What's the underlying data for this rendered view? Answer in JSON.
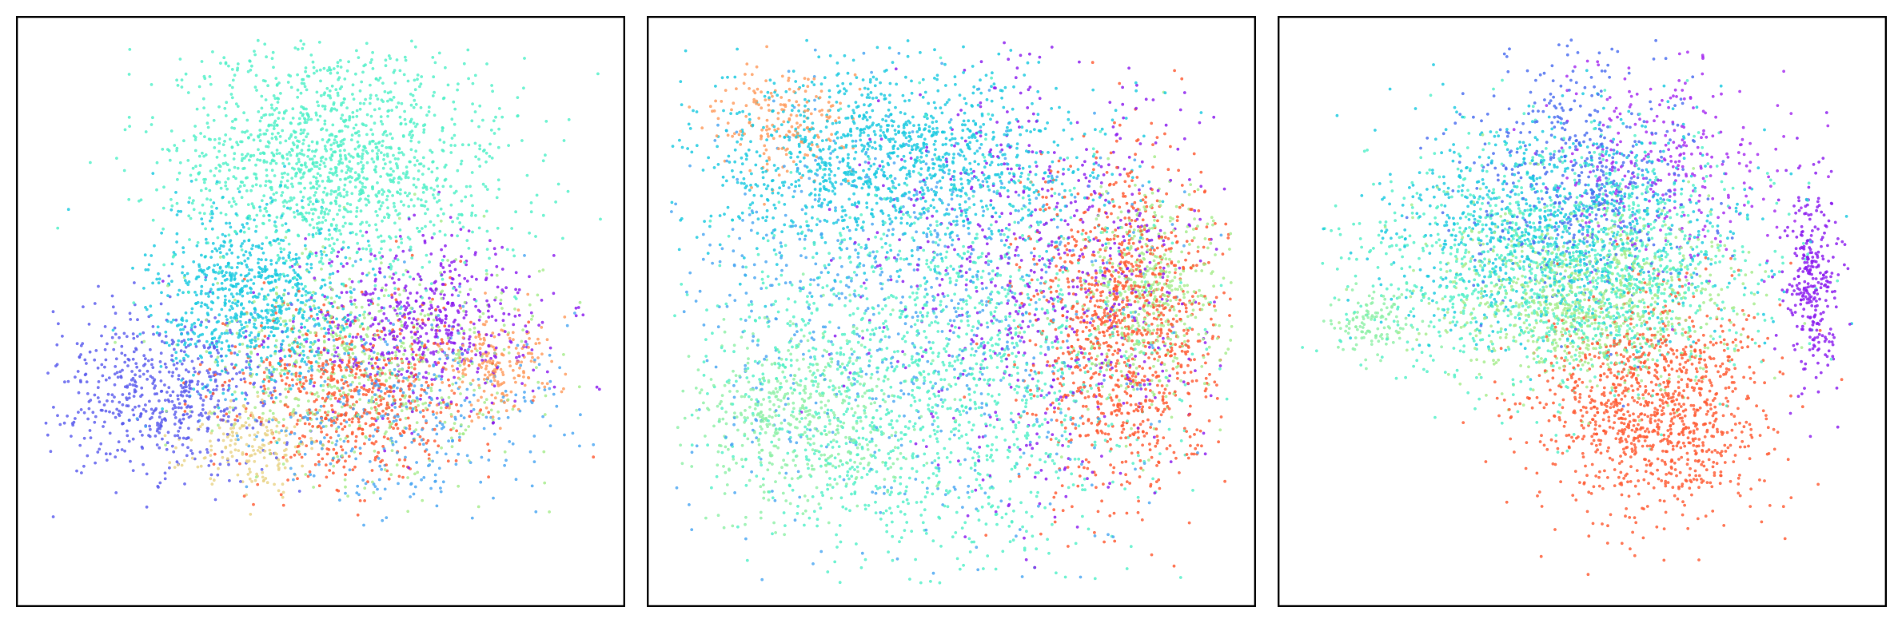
{
  "chart_data": [
    {
      "type": "scatter",
      "title": "",
      "xlabel": "",
      "ylabel": "",
      "xlim": [
        -1,
        1
      ],
      "ylim": [
        -1,
        1
      ],
      "axis_ticks": "none",
      "grid": false,
      "legend": "none",
      "colormap": "rainbow",
      "series": [
        {
          "color": "#51f0c8",
          "cx": 0.05,
          "cy": 0.55,
          "sx": 0.3,
          "sy": 0.22,
          "n": 1500
        },
        {
          "color": "#19c9e0",
          "cx": -0.25,
          "cy": 0.05,
          "sx": 0.18,
          "sy": 0.16,
          "n": 800
        },
        {
          "color": "#5b5ced",
          "cx": -0.55,
          "cy": -0.3,
          "sx": 0.2,
          "sy": 0.15,
          "n": 600
        },
        {
          "color": "#8b1cef",
          "cx": 0.35,
          "cy": -0.05,
          "sx": 0.22,
          "sy": 0.15,
          "n": 550
        },
        {
          "color": "#ff5a32",
          "cx": 0.1,
          "cy": -0.3,
          "sx": 0.2,
          "sy": 0.17,
          "n": 650
        },
        {
          "color": "#a6ec8c",
          "cx": 0.15,
          "cy": -0.2,
          "sx": 0.28,
          "sy": 0.2,
          "n": 600
        },
        {
          "color": "#e9d387",
          "cx": -0.25,
          "cy": -0.5,
          "sx": 0.12,
          "sy": 0.08,
          "n": 180
        },
        {
          "color": "#ff9b5c",
          "cx": 0.62,
          "cy": -0.2,
          "sx": 0.1,
          "sy": 0.1,
          "n": 200
        },
        {
          "color": "#4aa6f2",
          "cx": 0.3,
          "cy": -0.35,
          "sx": 0.3,
          "sy": 0.18,
          "n": 400
        }
      ]
    },
    {
      "type": "scatter",
      "title": "",
      "xlabel": "",
      "ylabel": "",
      "xlim": [
        -1,
        1
      ],
      "ylim": [
        -1,
        1
      ],
      "axis_ticks": "none",
      "grid": false,
      "legend": "none",
      "colormap": "rainbow",
      "series": [
        {
          "color": "#19c9e0",
          "cx": -0.2,
          "cy": 0.55,
          "sx": 0.35,
          "sy": 0.18,
          "n": 1300
        },
        {
          "color": "#51f0c8",
          "cx": -0.05,
          "cy": -0.25,
          "sx": 0.38,
          "sy": 0.35,
          "n": 1500
        },
        {
          "color": "#ff5a32",
          "cx": 0.62,
          "cy": -0.05,
          "sx": 0.17,
          "sy": 0.32,
          "n": 1100
        },
        {
          "color": "#a6ec8c",
          "cx": 0.7,
          "cy": 0.05,
          "sx": 0.12,
          "sy": 0.2,
          "n": 500
        },
        {
          "color": "#8b1cef",
          "cx": 0.35,
          "cy": 0.15,
          "sx": 0.3,
          "sy": 0.4,
          "n": 700
        },
        {
          "color": "#8ef0a8",
          "cx": -0.55,
          "cy": -0.4,
          "sx": 0.2,
          "sy": 0.16,
          "n": 500
        },
        {
          "color": "#4aa6f2",
          "cx": -0.2,
          "cy": 0.0,
          "sx": 0.45,
          "sy": 0.4,
          "n": 800
        },
        {
          "color": "#ff9b5c",
          "cx": -0.6,
          "cy": 0.7,
          "sx": 0.12,
          "sy": 0.1,
          "n": 180
        }
      ]
    },
    {
      "type": "scatter",
      "title": "",
      "xlabel": "",
      "ylabel": "",
      "xlim": [
        -1,
        1
      ],
      "ylim": [
        -1,
        1
      ],
      "axis_ticks": "none",
      "grid": false,
      "legend": "none",
      "colormap": "rainbow",
      "series": [
        {
          "color": "#51f0c8",
          "cx": -0.05,
          "cy": 0.15,
          "sx": 0.35,
          "sy": 0.22,
          "n": 1300
        },
        {
          "color": "#19c9e0",
          "cx": -0.1,
          "cy": 0.3,
          "sx": 0.3,
          "sy": 0.2,
          "n": 900
        },
        {
          "color": "#a6ec8c",
          "cx": 0.0,
          "cy": 0.05,
          "sx": 0.28,
          "sy": 0.16,
          "n": 900
        },
        {
          "color": "#4a6df0",
          "cx": 0.0,
          "cy": 0.5,
          "sx": 0.2,
          "sy": 0.22,
          "n": 500
        },
        {
          "color": "#ff5a32",
          "cx": 0.25,
          "cy": -0.35,
          "sx": 0.2,
          "sy": 0.2,
          "n": 1100
        },
        {
          "color": "#8b1cef",
          "cx": 0.82,
          "cy": 0.1,
          "sx": 0.05,
          "sy": 0.18,
          "n": 300
        },
        {
          "color": "#a52bf0",
          "cx": 0.3,
          "cy": 0.55,
          "sx": 0.2,
          "sy": 0.2,
          "n": 300
        },
        {
          "color": "#8ef0a8",
          "cx": -0.75,
          "cy": -0.05,
          "sx": 0.08,
          "sy": 0.06,
          "n": 120
        }
      ]
    }
  ]
}
